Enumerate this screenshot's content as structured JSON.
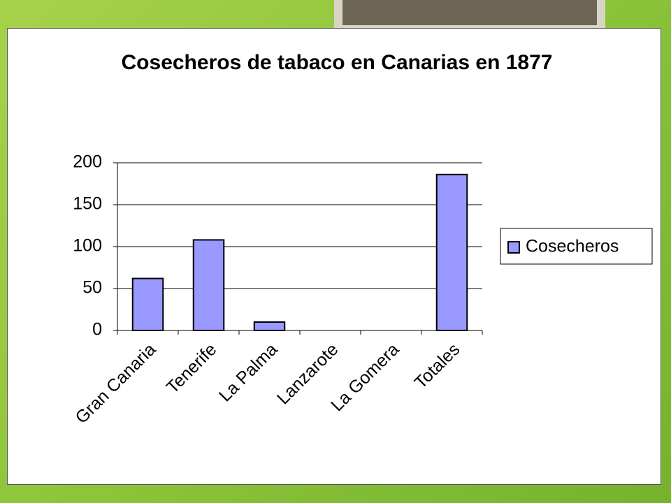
{
  "chart_data": {
    "type": "bar",
    "title": "Cosecheros de tabaco en Canarias en 1877",
    "categories": [
      "Gran Canaria",
      "Tenerife",
      "La Palma",
      "Lanzarote",
      "La Gomera",
      "Totales"
    ],
    "series": [
      {
        "name": "Cosecheros",
        "color": "#9999ff",
        "values": [
          62,
          108,
          10,
          0,
          0,
          186
        ]
      }
    ],
    "ylim": [
      0,
      200
    ],
    "yticks": [
      0,
      50,
      100,
      150,
      200
    ],
    "grid": true,
    "legend": "right"
  }
}
